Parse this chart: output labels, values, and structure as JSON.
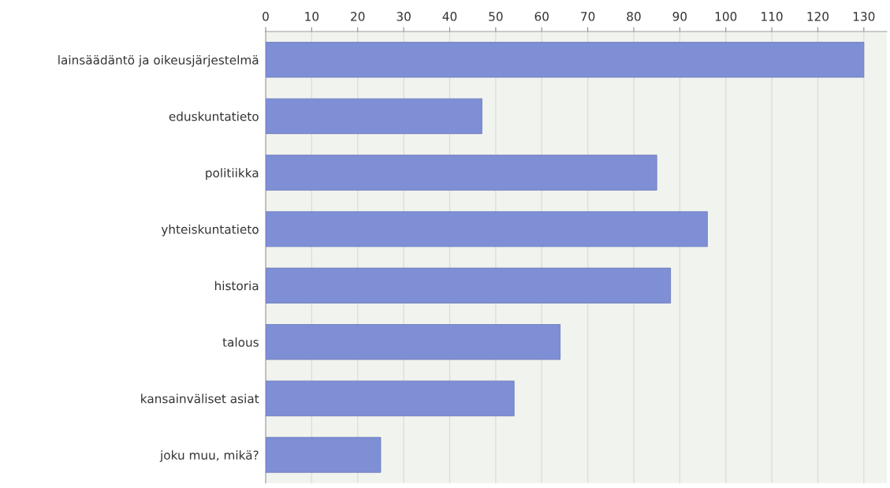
{
  "chart_data": {
    "type": "bar",
    "orientation": "horizontal",
    "categories": [
      "lainsäädäntö ja oikeusjärjestelmä",
      "eduskuntatieto",
      "politiikka",
      "yhteiskuntatieto",
      "historia",
      "talous",
      "kansainväliset asiat",
      "joku muu, mikä?"
    ],
    "values": [
      130,
      47,
      85,
      96,
      88,
      64,
      54,
      25
    ],
    "color": "#7f8fd6",
    "xlim": [
      0,
      135
    ],
    "xticks": [
      0,
      10,
      20,
      30,
      40,
      50,
      60,
      70,
      80,
      90,
      100,
      110,
      120,
      130
    ],
    "grid": "x"
  }
}
